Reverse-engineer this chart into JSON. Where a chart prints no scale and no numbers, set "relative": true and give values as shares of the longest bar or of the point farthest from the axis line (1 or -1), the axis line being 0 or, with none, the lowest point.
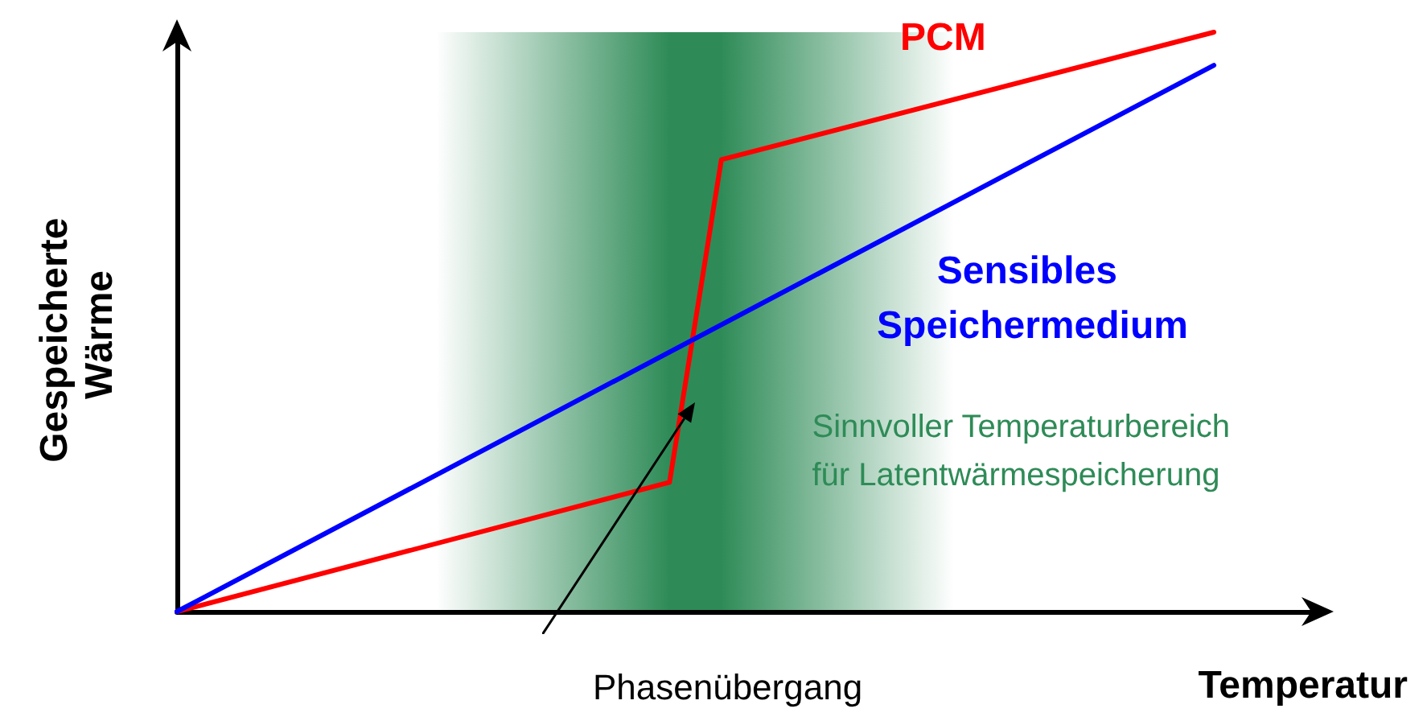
{
  "chart_data": {
    "type": "line",
    "relative": true,
    "xlabel": "Temperatur",
    "ylabel": "Gespeicherte Wärme",
    "legend": false,
    "grid": false,
    "marker": "none",
    "line_style": "solid",
    "categories": [
      null,
      null,
      null,
      null,
      null,
      null,
      null,
      null,
      null,
      null,
      null,
      null,
      null,
      null,
      null,
      null,
      null,
      null,
      null,
      null,
      null,
      null,
      null,
      null,
      null,
      null,
      null,
      null,
      null,
      null,
      null,
      null,
      null,
      null,
      null,
      null,
      null,
      null,
      null,
      null,
      null,
      null,
      null,
      null,
      null
    ],
    "series": [
      {
        "name": "PCM",
        "color": "#ff0000",
        "values": [
          0,
          null,
          null,
          null,
          null,
          null,
          null,
          null,
          null,
          null,
          null,
          null,
          null,
          null,
          null,
          null,
          null,
          null,
          null,
          0.223,
          null,
          0.78,
          null,
          null,
          null,
          null,
          null,
          null,
          null,
          null,
          null,
          null,
          null,
          null,
          null,
          null,
          null,
          null,
          null,
          null,
          1,
          null,
          null,
          null,
          null
        ]
      },
      {
        "name": "Sensibles Speichermedium",
        "color": "#0000ff",
        "values": [
          0,
          null,
          null,
          null,
          null,
          null,
          null,
          null,
          null,
          null,
          null,
          null,
          null,
          null,
          null,
          null,
          null,
          null,
          null,
          null,
          null,
          null,
          null,
          null,
          null,
          null,
          null,
          null,
          null,
          null,
          null,
          null,
          null,
          null,
          null,
          null,
          null,
          null,
          null,
          null,
          0.943,
          null,
          null,
          null,
          null
        ]
      }
    ],
    "annotations": [
      "Sinnvoller Temperaturbereich für Latentwärmespeicherung",
      "Phasenübergang"
    ]
  }
}
